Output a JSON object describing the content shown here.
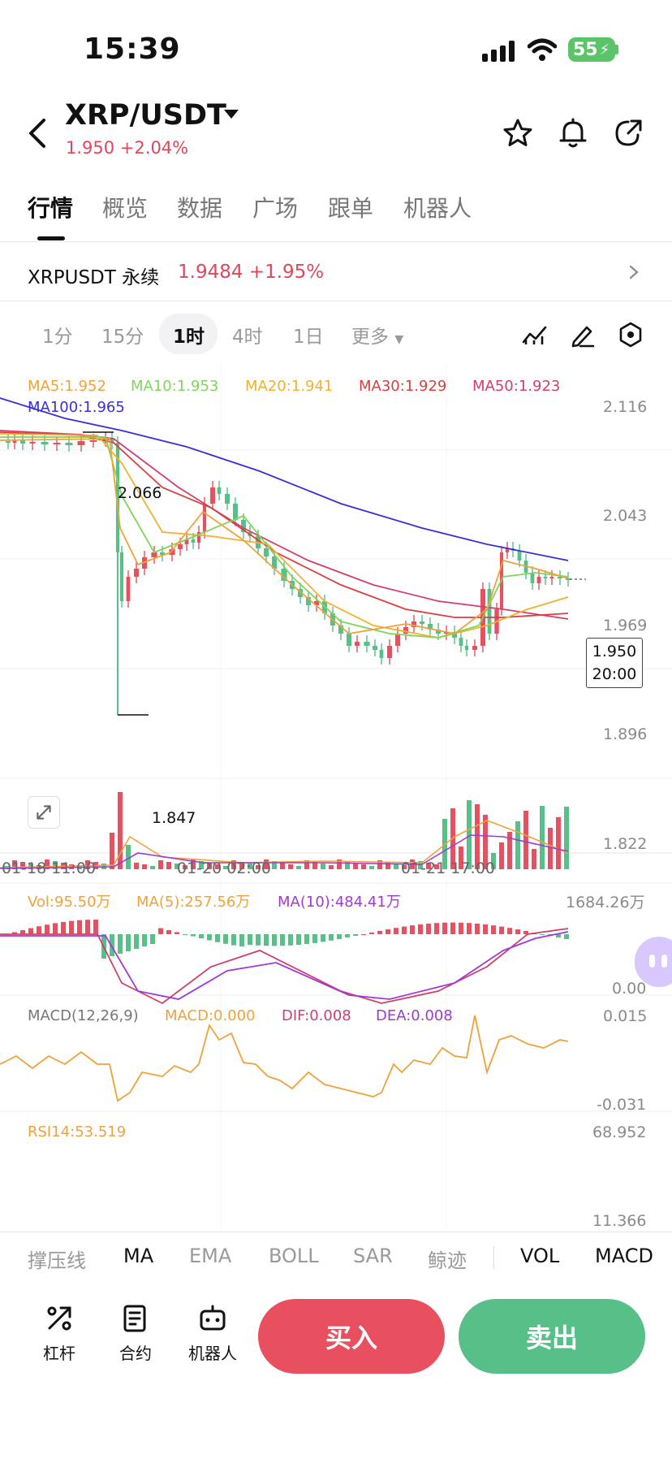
{
  "status": {
    "time": "15:39",
    "battery": "55"
  },
  "header": {
    "title": "XRP/USDT",
    "price": "1.950",
    "change": "+2.04%"
  },
  "tabs": [
    "行情",
    "概览",
    "数据",
    "广场",
    "跟单",
    "机器人"
  ],
  "perp": {
    "name": "XRPUSDT 永续",
    "price": "1.9484",
    "change": "+1.95%"
  },
  "intervals": [
    "1分",
    "15分",
    "1时",
    "4时",
    "1日",
    "更多"
  ],
  "ma_legend": {
    "ma5": "MA5:1.952",
    "ma10": "MA10:1.953",
    "ma20": "MA20:1.941",
    "ma30": "MA30:1.929",
    "ma50": "MA50:1.923",
    "ma100": "MA100:1.965"
  },
  "colors": {
    "ma5": "#f0a23a",
    "ma10": "#7fd45a",
    "ma20": "#f2b02e",
    "ma30": "#d94040",
    "ma50": "#d0406a",
    "ma100": "#3a2fd6",
    "up": "#e8505f",
    "down": "#56c088"
  },
  "chart_data": {
    "type": "candlestick",
    "price_axis": [
      "2.116",
      "2.043",
      "1.969",
      "1.896",
      "1.822"
    ],
    "time_axis": [
      "01-18 11:00",
      "01-20 02:00",
      "01-21 17:00"
    ],
    "high_label": "2.066",
    "low_label": "1.847",
    "last_price": "1.950",
    "countdown": "20:00",
    "volume": {
      "vol": "Vol:95.50万",
      "ma5": "MA(5):257.56万",
      "ma10": "MA(10):484.41万",
      "max": "1684.26万",
      "min": "0.00"
    },
    "macd": {
      "label": "MACD(12,26,9)",
      "macd": "MACD:0.000",
      "dif": "DIF:0.008",
      "dea": "DEA:0.008",
      "max": "0.015",
      "min": "-0.031"
    },
    "rsi": {
      "label": "RSI14:53.519",
      "max": "68.952",
      "min": "11.366"
    }
  },
  "indicator_tabs": [
    "撑压线",
    "MA",
    "EMA",
    "BOLL",
    "SAR",
    "鲸迹",
    "VOL",
    "MACD"
  ],
  "bottom": {
    "leverage": "杠杆",
    "contract": "合约",
    "robot": "机器人",
    "buy": "买入",
    "sell": "卖出"
  }
}
